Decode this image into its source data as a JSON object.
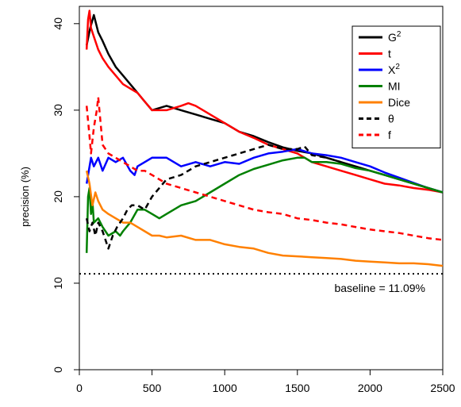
{
  "chart_data": {
    "type": "line",
    "xlabel": "",
    "ylabel": "precision (%)",
    "xlim": [
      0,
      2500
    ],
    "ylim": [
      0,
      42
    ],
    "xticks": [
      0,
      500,
      1000,
      1500,
      2000,
      2500
    ],
    "yticks": [
      0,
      10,
      20,
      30,
      40
    ],
    "grid": false,
    "legend_position": "top-right",
    "baseline": {
      "value": 11.09,
      "label": "baseline = 11.09%",
      "style": "dotted",
      "color": "#000000"
    },
    "series": [
      {
        "name": "G2",
        "sup": "2",
        "color": "#000000",
        "dash": "solid",
        "x": [
          50,
          75,
          100,
          130,
          160,
          200,
          250,
          300,
          350,
          400,
          450,
          500,
          600,
          700,
          800,
          900,
          1000,
          1100,
          1200,
          1300,
          1400,
          1500,
          1600,
          1700,
          1800,
          1900,
          2000,
          2100,
          2200,
          2300,
          2400,
          2500
        ],
        "y": [
          37.5,
          39.5,
          41.0,
          39.0,
          38.0,
          36.5,
          35.0,
          34.0,
          33.0,
          32.0,
          31.0,
          30.0,
          30.5,
          30.0,
          29.5,
          29.0,
          28.5,
          27.5,
          27.0,
          26.3,
          25.7,
          25.3,
          25.0,
          24.5,
          24.0,
          23.5,
          23.0,
          22.5,
          22.0,
          21.5,
          21.0,
          20.5
        ]
      },
      {
        "name": "t",
        "color": "#ff0000",
        "dash": "solid",
        "x": [
          50,
          60,
          70,
          80,
          100,
          130,
          160,
          200,
          250,
          300,
          350,
          400,
          450,
          500,
          600,
          700,
          750,
          800,
          900,
          1000,
          1100,
          1200,
          1300,
          1400,
          1500,
          1600,
          1700,
          1800,
          1900,
          2000,
          2100,
          2200,
          2300,
          2400,
          2500
        ],
        "y": [
          37.0,
          40.5,
          41.5,
          39.5,
          38.5,
          37.0,
          36.0,
          35.0,
          34.0,
          33.0,
          32.5,
          32.0,
          31.0,
          30.0,
          30.0,
          30.5,
          30.8,
          30.5,
          29.5,
          28.5,
          27.5,
          26.8,
          26.0,
          25.5,
          25.0,
          24.0,
          23.5,
          23.0,
          22.5,
          22.0,
          21.5,
          21.3,
          21.0,
          20.8,
          20.5
        ]
      },
      {
        "name": "X2",
        "sup": "2",
        "color": "#0000ff",
        "dash": "solid",
        "x": [
          50,
          80,
          100,
          130,
          160,
          200,
          250,
          300,
          350,
          380,
          400,
          450,
          500,
          600,
          700,
          800,
          900,
          1000,
          1100,
          1200,
          1300,
          1400,
          1500,
          1600,
          1700,
          1800,
          1900,
          2000,
          2100,
          2200,
          2300,
          2400,
          2500
        ],
        "y": [
          21.5,
          24.5,
          23.5,
          24.5,
          23.0,
          24.5,
          24.0,
          24.5,
          23.0,
          22.5,
          23.5,
          24.0,
          24.5,
          24.5,
          23.5,
          24.0,
          23.5,
          24.0,
          23.8,
          24.5,
          25.0,
          25.2,
          25.5,
          25.0,
          24.8,
          24.5,
          24.0,
          23.5,
          22.8,
          22.2,
          21.6,
          21.0,
          20.5
        ]
      },
      {
        "name": "MI",
        "color": "#008000",
        "dash": "solid",
        "x": [
          50,
          60,
          70,
          80,
          90,
          100,
          130,
          160,
          200,
          250,
          280,
          300,
          350,
          400,
          450,
          500,
          550,
          600,
          700,
          800,
          900,
          1000,
          1100,
          1200,
          1300,
          1400,
          1500,
          1550,
          1600,
          1700,
          1800,
          1900,
          2000,
          2100,
          2200,
          2300,
          2400,
          2500
        ],
        "y": [
          13.5,
          20.0,
          21.0,
          18.0,
          19.5,
          17.0,
          17.5,
          16.5,
          15.5,
          16.0,
          15.5,
          16.0,
          17.0,
          18.5,
          18.5,
          18.0,
          17.5,
          18.0,
          19.0,
          19.5,
          20.5,
          21.5,
          22.5,
          23.2,
          23.7,
          24.2,
          24.5,
          24.5,
          24.0,
          24.0,
          23.8,
          23.3,
          23.0,
          22.5,
          22.0,
          21.5,
          21.0,
          20.5
        ]
      },
      {
        "name": "Dice",
        "color": "#ff8000",
        "dash": "solid",
        "x": [
          50,
          70,
          90,
          110,
          130,
          160,
          200,
          250,
          300,
          350,
          400,
          450,
          500,
          550,
          600,
          700,
          800,
          900,
          1000,
          1100,
          1200,
          1300,
          1400,
          1500,
          1600,
          1700,
          1800,
          1900,
          2000,
          2100,
          2200,
          2300,
          2400,
          2500
        ],
        "y": [
          23.0,
          21.5,
          19.0,
          20.5,
          19.5,
          18.5,
          18.0,
          17.5,
          17.0,
          17.0,
          16.5,
          16.0,
          15.5,
          15.5,
          15.3,
          15.5,
          15.0,
          15.0,
          14.5,
          14.2,
          14.0,
          13.5,
          13.2,
          13.1,
          13.0,
          12.9,
          12.8,
          12.6,
          12.5,
          12.4,
          12.3,
          12.3,
          12.2,
          12.0
        ]
      },
      {
        "name": "θ",
        "color": "#000000",
        "dash": "dashed",
        "x": [
          50,
          70,
          90,
          110,
          130,
          160,
          200,
          230,
          260,
          300,
          330,
          360,
          400,
          450,
          500,
          600,
          700,
          800,
          900,
          1000,
          1100,
          1200,
          1300,
          1400,
          1500,
          1550,
          1600,
          1700,
          1800
        ],
        "y": [
          17.5,
          16.0,
          17.0,
          15.5,
          17.0,
          16.0,
          14.0,
          15.5,
          16.5,
          17.5,
          18.5,
          19.0,
          19.0,
          18.5,
          20.0,
          22.0,
          22.5,
          23.5,
          24.0,
          24.5,
          25.0,
          25.5,
          26.0,
          25.5,
          25.5,
          25.8,
          24.8,
          24.5,
          24.0
        ]
      },
      {
        "name": "f",
        "color": "#ff0000",
        "dash": "dashed",
        "x": [
          50,
          70,
          80,
          100,
          120,
          130,
          160,
          200,
          250,
          300,
          350,
          400,
          450,
          500,
          600,
          700,
          800,
          900,
          1000,
          1100,
          1200,
          1300,
          1400,
          1500,
          1600,
          1700,
          1800,
          1900,
          2000,
          2100,
          2200,
          2300,
          2400,
          2500
        ],
        "y": [
          30.5,
          27.0,
          25.0,
          28.0,
          30.0,
          31.5,
          26.0,
          25.0,
          24.5,
          24.0,
          23.5,
          23.0,
          23.0,
          22.5,
          21.5,
          21.0,
          20.5,
          20.0,
          19.5,
          19.0,
          18.5,
          18.2,
          18.0,
          17.5,
          17.3,
          17.0,
          16.8,
          16.5,
          16.2,
          16.0,
          15.8,
          15.5,
          15.2,
          15.0
        ]
      }
    ]
  }
}
